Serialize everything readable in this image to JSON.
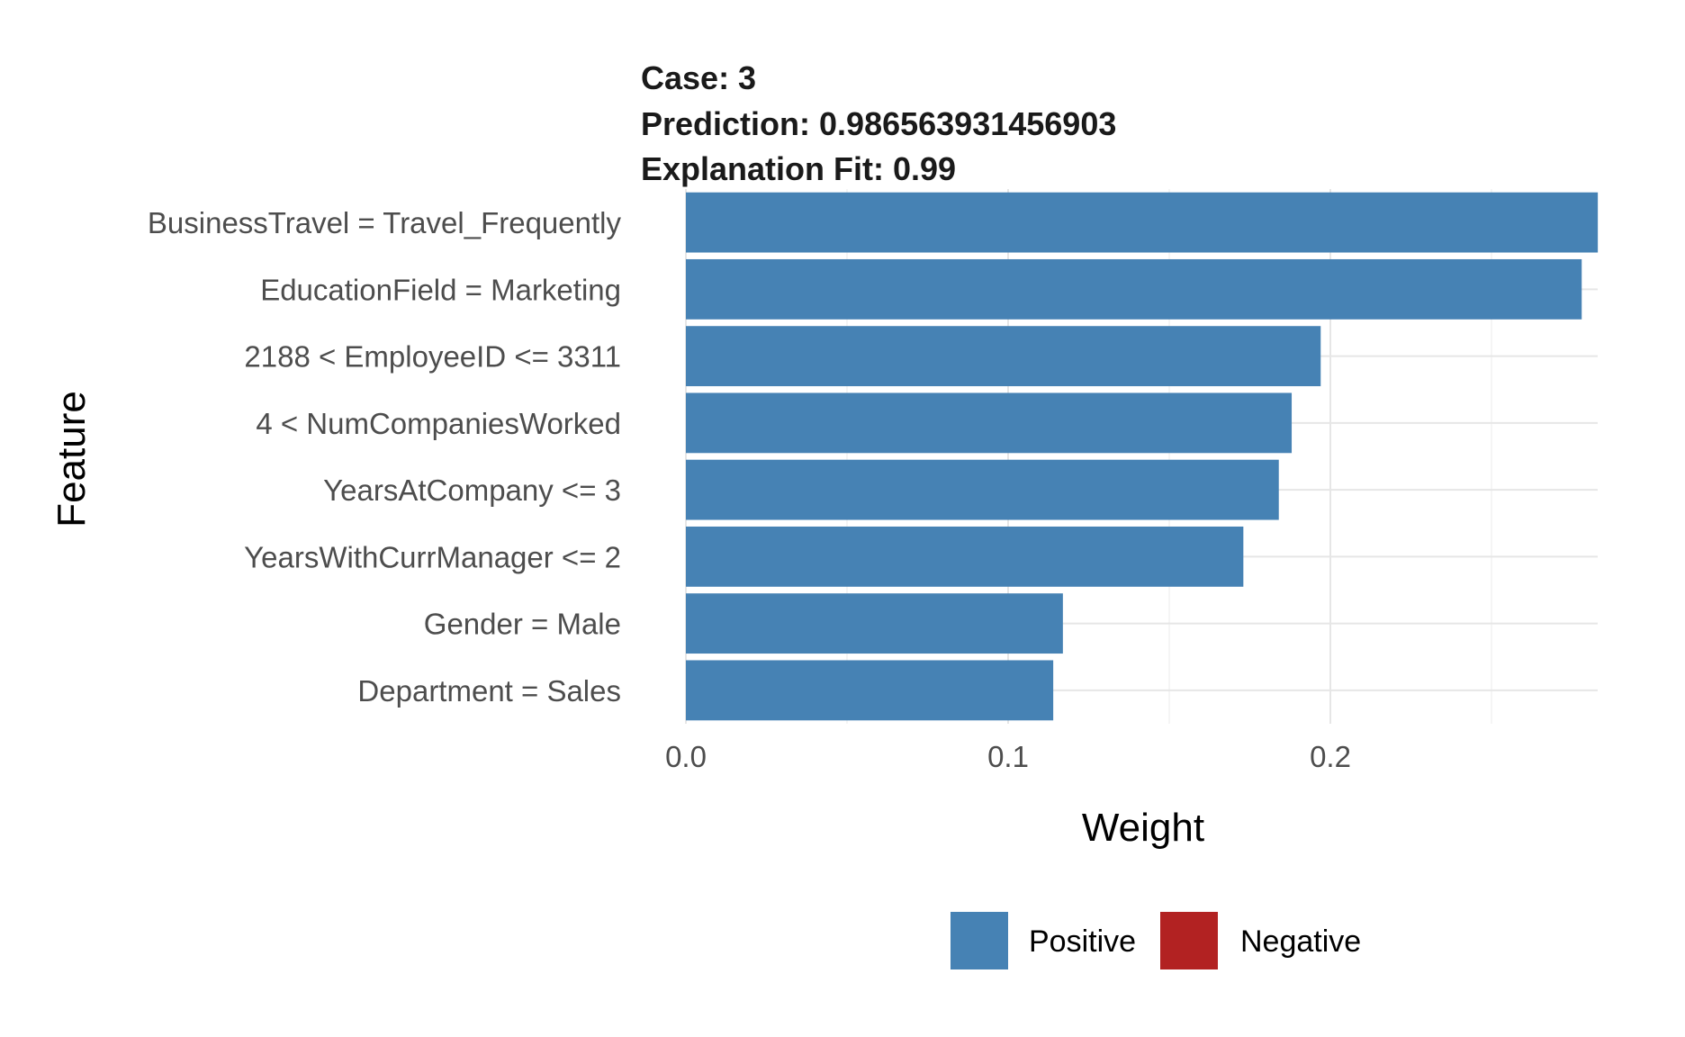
{
  "chart_data": {
    "type": "bar",
    "orientation": "horizontal",
    "title_lines": [
      "Case: 3",
      "Prediction: 0.986563931456903",
      "Explanation Fit: 0.99"
    ],
    "xlabel": "Weight",
    "ylabel": "Feature",
    "xlim": [
      0,
      0.285
    ],
    "xticks": [
      0.0,
      0.1,
      0.2
    ],
    "xtick_labels": [
      "0.0",
      "0.1",
      "0.2"
    ],
    "grid": true,
    "legend_position": "bottom",
    "categories": [
      "BusinessTravel = Travel_Frequently",
      "EducationField = Marketing",
      "2188 < EmployeeID <= 3311",
      "4 < NumCompaniesWorked",
      "YearsAtCompany <= 3",
      "YearsWithCurrManager <= 2",
      "Gender = Male",
      "Department = Sales"
    ],
    "values": [
      0.283,
      0.278,
      0.197,
      0.188,
      0.184,
      0.173,
      0.117,
      0.114
    ],
    "bar_types": [
      "Positive",
      "Positive",
      "Positive",
      "Positive",
      "Positive",
      "Positive",
      "Positive",
      "Positive"
    ],
    "legend": [
      {
        "label": "Positive",
        "color": "#4682B4"
      },
      {
        "label": "Negative",
        "color": "#B22222"
      }
    ]
  }
}
